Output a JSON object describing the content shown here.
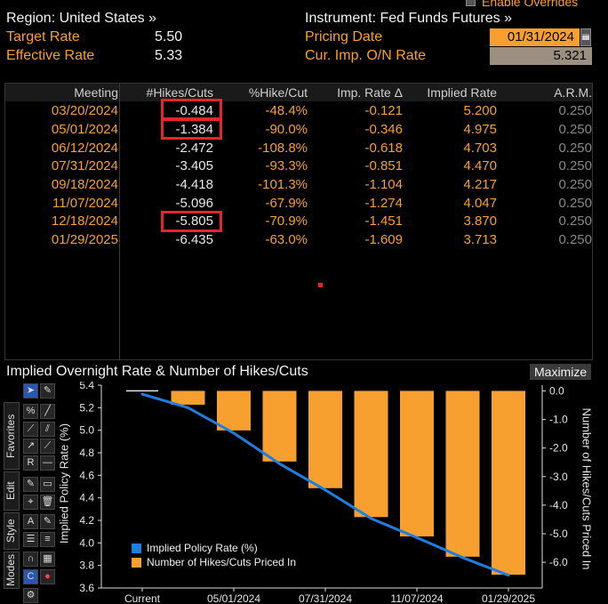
{
  "header": {
    "region_label": "Region: United States »",
    "instrument_label": "Instrument: Fed Funds Futures »",
    "enable_overrides": "Enable Overrides",
    "target_rate_label": "Target Rate",
    "target_rate_value": "5.50",
    "effective_rate_label": "Effective Rate",
    "effective_rate_value": "5.33",
    "pricing_date_label": "Pricing Date",
    "pricing_date_value": "01/31/2024",
    "cur_imp_label": "Cur. Imp. O/N Rate",
    "cur_imp_value": "5.321"
  },
  "table": {
    "columns": [
      "Meeting",
      "#Hikes/Cuts",
      "%Hike/Cut",
      "Imp. Rate Δ",
      "Implied Rate",
      "A.R.M."
    ],
    "rows": [
      {
        "meeting": "03/20/2024",
        "hikes": "-0.484",
        "pct": "-48.4%",
        "delta": "-0.121",
        "implied": "5.200",
        "arm": "0.250"
      },
      {
        "meeting": "05/01/2024",
        "hikes": "-1.384",
        "pct": "-90.0%",
        "delta": "-0.346",
        "implied": "4.975",
        "arm": "0.250"
      },
      {
        "meeting": "06/12/2024",
        "hikes": "-2.472",
        "pct": "-108.8%",
        "delta": "-0.618",
        "implied": "4.703",
        "arm": "0.250"
      },
      {
        "meeting": "07/31/2024",
        "hikes": "-3.405",
        "pct": "-93.3%",
        "delta": "-0.851",
        "implied": "4.470",
        "arm": "0.250"
      },
      {
        "meeting": "09/18/2024",
        "hikes": "-4.418",
        "pct": "-101.3%",
        "delta": "-1.104",
        "implied": "4.217",
        "arm": "0.250"
      },
      {
        "meeting": "11/07/2024",
        "hikes": "-5.096",
        "pct": "-67.9%",
        "delta": "-1.274",
        "implied": "4.047",
        "arm": "0.250"
      },
      {
        "meeting": "12/18/2024",
        "hikes": "-5.805",
        "pct": "-70.9%",
        "delta": "-1.451",
        "implied": "3.870",
        "arm": "0.250"
      },
      {
        "meeting": "01/29/2025",
        "hikes": "-6.435",
        "pct": "-63.0%",
        "delta": "-1.609",
        "implied": "3.713",
        "arm": "0.250"
      }
    ]
  },
  "chart_panel": {
    "title": "Implied Overnight Rate & Number of Hikes/Cuts",
    "maximize_label": "Maximize",
    "side_tabs": [
      "Favorites",
      "Edit",
      "Style",
      "Modes"
    ]
  },
  "colors": {
    "accent_orange": "#f7a030",
    "line_blue": "#1f7fe0",
    "highlight_red": "#e4252b"
  },
  "chart_data": {
    "type": "bar",
    "x_tick_labels": [
      "Current",
      "05/01/2024",
      "07/31/2024",
      "11/07/2024",
      "01/29/2025"
    ],
    "categories": [
      "Current",
      "03/20/2024",
      "05/01/2024",
      "06/12/2024",
      "07/31/2024",
      "09/18/2024",
      "11/07/2024",
      "12/18/2024",
      "01/29/2025"
    ],
    "series": [
      {
        "name": "Implied Policy Rate (%)",
        "type": "line",
        "axis": "left",
        "color": "#1f7fe0",
        "values": [
          5.321,
          5.2,
          4.975,
          4.703,
          4.47,
          4.217,
          4.047,
          3.87,
          3.713
        ]
      },
      {
        "name": "Number of Hikes/Cuts Priced In",
        "type": "bar",
        "axis": "right",
        "color": "#f7a030",
        "values": [
          0,
          -0.484,
          -1.384,
          -2.472,
          -3.405,
          -4.418,
          -5.096,
          -5.805,
          -6.435
        ]
      }
    ],
    "ylabel": "Implied Policy Rate (%)",
    "y2label": "Number of Hikes/Cuts Priced In",
    "ylim": [
      3.6,
      5.4
    ],
    "y_ticks": [
      "5.4",
      "5.2",
      "5.0",
      "4.8",
      "4.6",
      "4.4",
      "4.2",
      "4.0",
      "3.8",
      "3.6"
    ],
    "y2lim": [
      -6.9,
      0.2
    ],
    "y2_ticks": [
      "0.0",
      "-1.0",
      "-2.0",
      "-3.0",
      "-4.0",
      "-5.0",
      "-6.0"
    ],
    "legend_position": "bottom-left",
    "grid": false
  }
}
